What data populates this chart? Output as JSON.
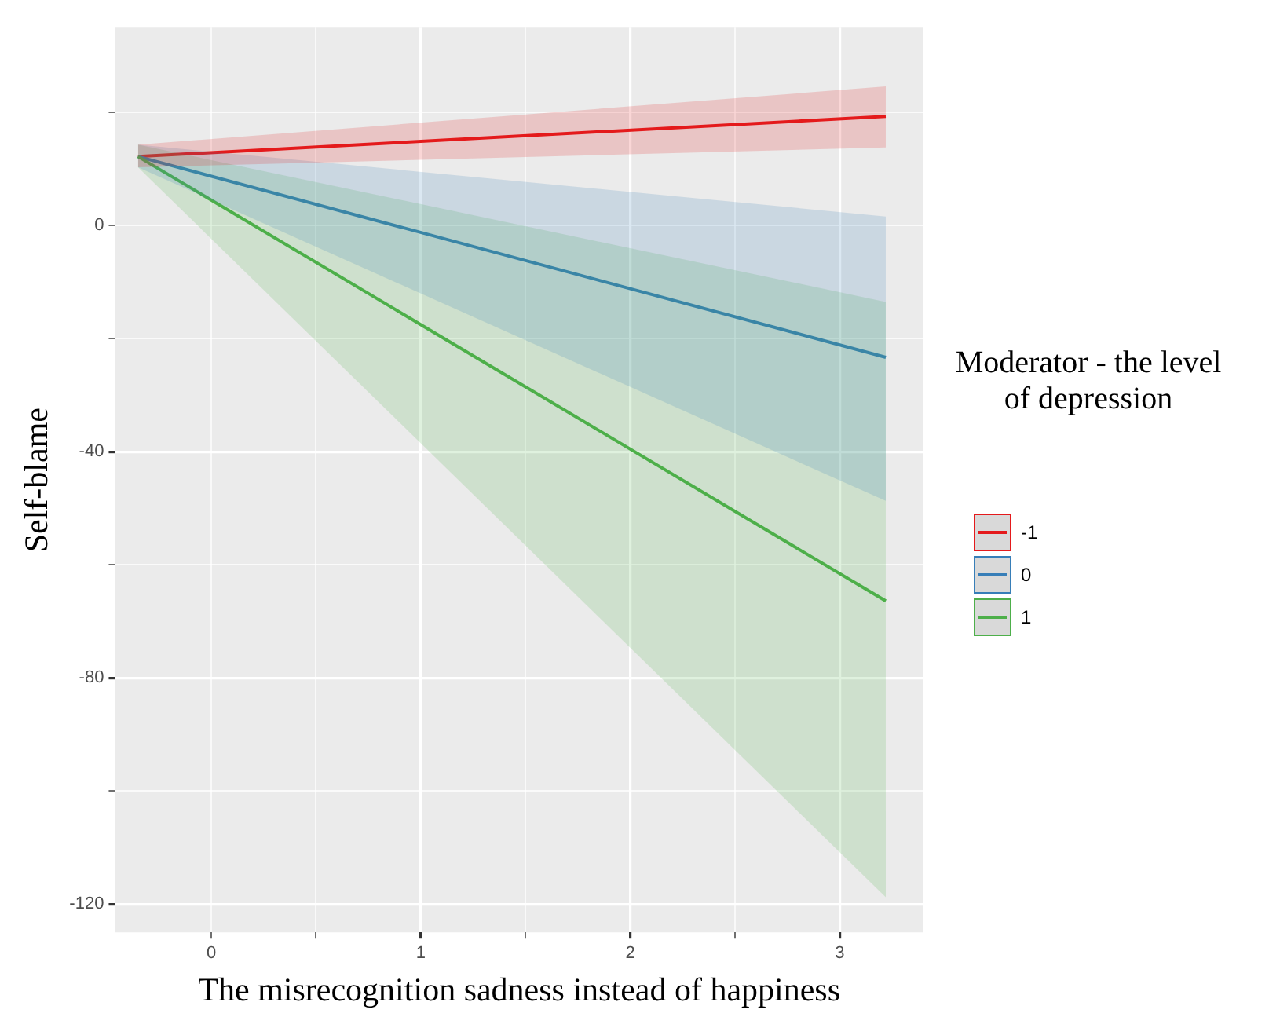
{
  "chart_data": {
    "type": "line",
    "xlabel": "The misrecognition sadness instead of happiness",
    "ylabel": "Self-blame",
    "legend_title": "Moderator - the level of depression",
    "legend": "right",
    "grid": true,
    "marker": "none",
    "line_style": "solid",
    "xlim": [
      -0.46,
      3.4
    ],
    "ylim": [
      -125,
      35
    ],
    "xticks": [
      0,
      {
        "value": 0.5,
        "label": null
      },
      1,
      {
        "value": 1.5,
        "label": null
      },
      2,
      {
        "value": 2.5,
        "label": null
      },
      3
    ],
    "yticks": [
      {
        "value": 20,
        "label": null
      },
      0,
      {
        "value": -20,
        "label": null
      },
      -40,
      {
        "value": -60,
        "label": null
      },
      -80,
      {
        "value": -100,
        "label": null
      },
      -120
    ],
    "x": [
      -0.35,
      3.22
    ],
    "series": [
      {
        "name": "-1",
        "color": "#e41a1c",
        "values": [
          12.2,
          19.3
        ],
        "lower": [
          10.3,
          13.8
        ],
        "upper": [
          14.3,
          24.6
        ]
      },
      {
        "name": "0",
        "color": "#377eb8",
        "values": [
          12.2,
          -23.3
        ],
        "lower": [
          10.3,
          -48.7
        ],
        "upper": [
          14.3,
          1.6
        ]
      },
      {
        "name": "1",
        "color": "#4daf4a",
        "values": [
          12.2,
          -66.4
        ],
        "lower": [
          10.3,
          -118.8
        ],
        "upper": [
          14.3,
          -13.5
        ]
      }
    ]
  }
}
